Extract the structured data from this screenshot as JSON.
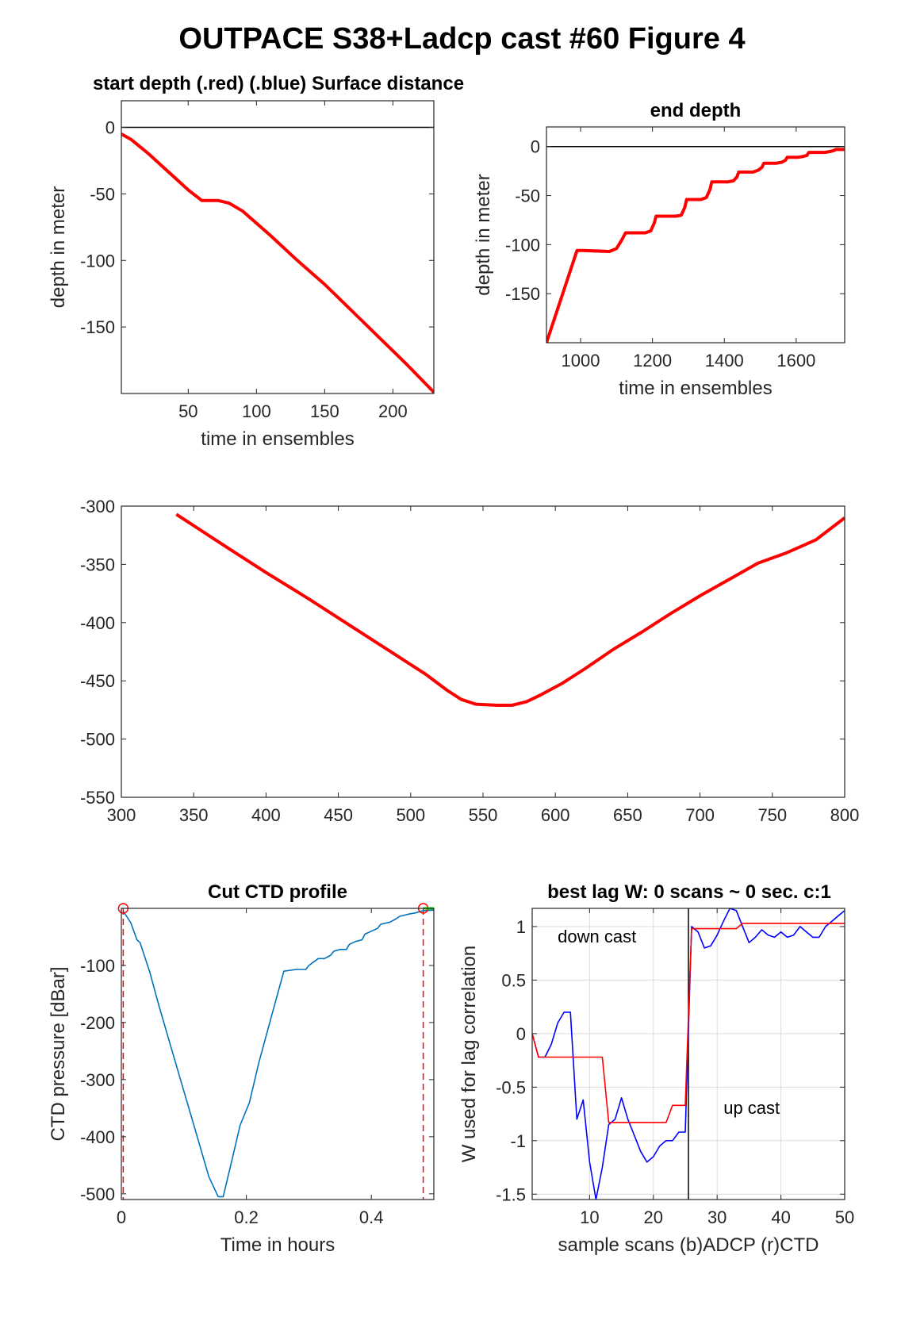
{
  "figure": {
    "title": "OUTPACE S38+Ladcp cast #60   Figure 4"
  },
  "chart_data": [
    {
      "id": "start",
      "type": "line",
      "title": "start depth (.red) (.blue) Surface distance",
      "xlabel": "time in ensembles",
      "ylabel": "depth in meter",
      "xlim": [
        1,
        230
      ],
      "ylim": [
        -200,
        20
      ],
      "xticks": [
        50,
        100,
        150,
        200
      ],
      "yticks": [
        0,
        -50,
        -100,
        -150
      ],
      "grid": false,
      "hlines": [
        0
      ],
      "series": [
        {
          "color": "#ff0000",
          "x": [
            1,
            8,
            20,
            35,
            50,
            60,
            72,
            80,
            90,
            110,
            130,
            150,
            170,
            190,
            210,
            230
          ],
          "y": [
            -5,
            -9,
            -19,
            -33,
            -47,
            -55,
            -55,
            -57,
            -63,
            -81,
            -100,
            -118,
            -138,
            -158,
            -178,
            -199
          ]
        }
      ]
    },
    {
      "id": "end",
      "type": "line",
      "title": "end depth",
      "xlabel": "time in ensembles",
      "ylabel": "depth in meter",
      "xlim": [
        905,
        1735
      ],
      "ylim": [
        -200,
        20
      ],
      "xticks": [
        1000,
        1200,
        1400,
        1600
      ],
      "yticks": [
        0,
        -50,
        -100,
        -150
      ],
      "grid": false,
      "hlines": [
        0
      ],
      "series": [
        {
          "color": "#ff0000",
          "x": [
            905,
            990,
            1005,
            1080,
            1100,
            1115,
            1125,
            1180,
            1195,
            1205,
            1210,
            1265,
            1280,
            1290,
            1295,
            1335,
            1350,
            1360,
            1365,
            1410,
            1425,
            1435,
            1440,
            1480,
            1495,
            1505,
            1510,
            1545,
            1560,
            1570,
            1575,
            1605,
            1620,
            1630,
            1635,
            1680,
            1695,
            1705,
            1710,
            1735
          ],
          "y": [
            -200,
            -106,
            -106,
            -107,
            -104,
            -95,
            -88,
            -88,
            -86,
            -78,
            -71,
            -71,
            -70,
            -62,
            -54,
            -54,
            -52,
            -44,
            -36,
            -36,
            -35,
            -31,
            -26,
            -26,
            -24,
            -21,
            -17,
            -17,
            -16,
            -14,
            -11,
            -11,
            -10,
            -9,
            -6,
            -6,
            -5,
            -4,
            -3,
            -3
          ]
        }
      ]
    },
    {
      "id": "middle",
      "type": "line",
      "title": "",
      "xlabel": "",
      "ylabel": "",
      "xlim": [
        300,
        800
      ],
      "ylim": [
        -550,
        -300
      ],
      "xticks": [
        300,
        350,
        400,
        450,
        500,
        550,
        600,
        650,
        700,
        750,
        800
      ],
      "yticks": [
        -300,
        -350,
        -400,
        -450,
        -500,
        -550
      ],
      "grid": false,
      "series": [
        {
          "color": "#ff0000",
          "x": [
            338,
            370,
            400,
            430,
            460,
            490,
            510,
            525,
            535,
            545,
            560,
            570,
            580,
            590,
            605,
            620,
            640,
            660,
            680,
            700,
            720,
            740,
            760,
            780,
            800
          ],
          "y": [
            -307,
            -333,
            -357,
            -380,
            -404,
            -428,
            -444,
            -458,
            -466,
            -470,
            -471,
            -471,
            -468,
            -462,
            -452,
            -440,
            -423,
            -408,
            -392,
            -377,
            -363,
            -349,
            -340,
            -329,
            -310
          ]
        }
      ]
    },
    {
      "id": "ctd",
      "type": "line",
      "title": "Cut CTD profile",
      "xlabel": "Time in hours",
      "ylabel": "CTD pressure [dBar]",
      "xlim": [
        0,
        0.5
      ],
      "ylim": [
        -510,
        0
      ],
      "xticks": [
        0,
        0.2,
        0.4
      ],
      "xtick_labels": [
        "0",
        "0.2",
        "0.4"
      ],
      "yticks": [
        -100,
        -200,
        -300,
        -400,
        -500
      ],
      "grid": false,
      "vlines": [
        0.003,
        0.483
      ],
      "markers_x": [
        0.003,
        0.483
      ],
      "series": [
        {
          "color": "#0072bd",
          "x": [
            0.003,
            0.015,
            0.025,
            0.03,
            0.045,
            0.06,
            0.08,
            0.1,
            0.12,
            0.14,
            0.155,
            0.163,
            0.175,
            0.19,
            0.205,
            0.22,
            0.24,
            0.26,
            0.28,
            0.295,
            0.3,
            0.31,
            0.315,
            0.325,
            0.335,
            0.34,
            0.35,
            0.36,
            0.365,
            0.375,
            0.385,
            0.39,
            0.4,
            0.41,
            0.415,
            0.43,
            0.44,
            0.445,
            0.46,
            0.47,
            0.483,
            0.5
          ],
          "y": [
            -5,
            -25,
            -55,
            -60,
            -110,
            -170,
            -245,
            -320,
            -395,
            -470,
            -505,
            -505,
            -450,
            -380,
            -340,
            -270,
            -190,
            -110,
            -107,
            -107,
            -100,
            -92,
            -88,
            -88,
            -82,
            -75,
            -72,
            -72,
            -63,
            -58,
            -55,
            -45,
            -40,
            -35,
            -28,
            -24,
            -18,
            -14,
            -10,
            -8,
            -4,
            -3
          ]
        }
      ]
    },
    {
      "id": "lag",
      "type": "line",
      "title": "best lag W: 0 scans ~ 0 sec.  c:1",
      "xlabel": "sample scans (b)ADCP (r)CTD",
      "ylabel": "W used for lag correlation",
      "xlim": [
        1,
        50
      ],
      "ylim": [
        -1.55,
        1.17
      ],
      "xticks": [
        10,
        20,
        30,
        40,
        50
      ],
      "yticks": [
        1,
        0.5,
        0,
        -0.5,
        -1,
        -1.5
      ],
      "grid": true,
      "vlines": [
        25.5
      ],
      "annotations": [
        {
          "text": "down cast",
          "x": 5,
          "y": 0.85
        },
        {
          "text": "up cast",
          "x": 31,
          "y": -0.75
        }
      ],
      "series": [
        {
          "name": "ADCP",
          "color": "#0000ff",
          "x": [
            1,
            2,
            3,
            4,
            5,
            6,
            7,
            8,
            9,
            10,
            11,
            12,
            13,
            14,
            15,
            16,
            17,
            18,
            19,
            20,
            21,
            22,
            23,
            24,
            25,
            26,
            27,
            28,
            29,
            30,
            31,
            32,
            33,
            34,
            35,
            36,
            37,
            38,
            39,
            40,
            41,
            42,
            43,
            44,
            45,
            46,
            47,
            48,
            49,
            50
          ],
          "y": [
            0,
            -0.22,
            -0.22,
            -0.1,
            0.1,
            0.2,
            0.2,
            -0.8,
            -0.62,
            -1.2,
            -1.55,
            -1.25,
            -0.85,
            -0.8,
            -0.6,
            -0.8,
            -0.95,
            -1.1,
            -1.2,
            -1.15,
            -1.05,
            -1.0,
            -1.0,
            -0.92,
            -0.92,
            1.0,
            0.95,
            0.8,
            0.82,
            0.92,
            1.05,
            1.17,
            1.15,
            1.0,
            0.85,
            0.9,
            0.97,
            0.92,
            0.9,
            0.95,
            0.9,
            0.92,
            1.0,
            0.95,
            0.9,
            0.9,
            1.0,
            1.05,
            1.1,
            1.15
          ]
        },
        {
          "name": "CTD",
          "color": "#ff0000",
          "x": [
            1,
            2,
            3,
            4,
            5,
            6,
            7,
            8,
            9,
            10,
            11,
            12,
            13,
            14,
            15,
            16,
            17,
            18,
            19,
            20,
            21,
            22,
            23,
            24,
            25,
            26,
            27,
            28,
            29,
            30,
            31,
            32,
            33,
            34,
            35,
            36,
            37,
            38,
            39,
            40,
            41,
            42,
            43,
            44,
            45,
            46,
            47,
            48,
            49,
            50
          ],
          "y": [
            0,
            -0.22,
            -0.22,
            -0.22,
            -0.22,
            -0.22,
            -0.22,
            -0.22,
            -0.22,
            -0.22,
            -0.22,
            -0.22,
            -0.83,
            -0.83,
            -0.83,
            -0.83,
            -0.83,
            -0.83,
            -0.83,
            -0.83,
            -0.83,
            -0.83,
            -0.67,
            -0.67,
            -0.67,
            0.98,
            0.98,
            0.98,
            0.98,
            0.98,
            0.98,
            0.98,
            0.98,
            1.03,
            1.03,
            1.03,
            1.03,
            1.03,
            1.03,
            1.03,
            1.03,
            1.03,
            1.03,
            1.03,
            1.03,
            1.03,
            1.03,
            1.03,
            1.03,
            1.03
          ]
        }
      ]
    }
  ]
}
